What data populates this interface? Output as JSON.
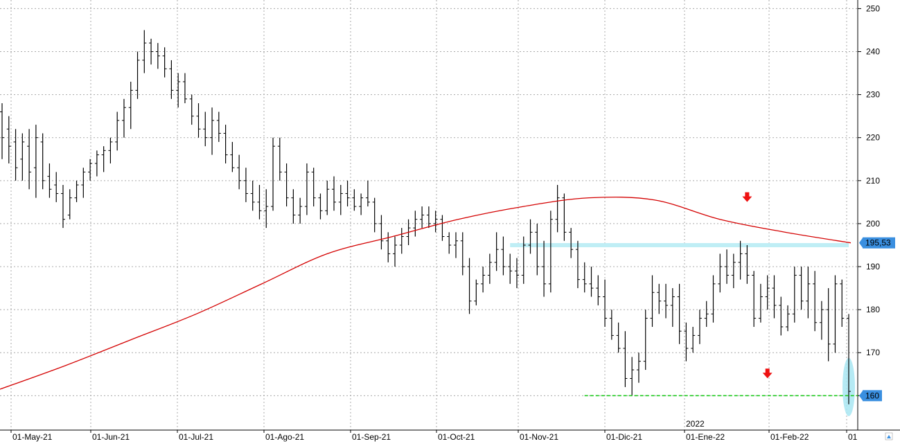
{
  "chart_data": {
    "type": "ohlc",
    "ylim": [
      152,
      252
    ],
    "y_ticks": [
      160,
      170,
      180,
      190,
      200,
      210,
      220,
      230,
      240,
      250
    ],
    "grid": true,
    "x_tick_labels": [
      "01-May-21",
      "01-Jun-21",
      "01-Jul-21",
      "01-Ago-21",
      "01-Sep-21",
      "01-Oct-21",
      "01-Nov-21",
      "01-Dic-21",
      "01-Ene-22",
      "01-Feb-22",
      "01"
    ],
    "year_marker": "2022",
    "series": [
      {
        "kind": "daily_bars",
        "bars": [
          [
            226,
            228,
            215,
            220
          ],
          [
            222,
            225,
            214,
            218
          ],
          [
            219,
            222,
            210,
            213
          ],
          [
            215,
            221,
            210,
            219
          ],
          [
            218,
            222,
            208,
            212
          ],
          [
            213,
            223,
            206,
            220
          ],
          [
            219,
            221,
            208,
            210
          ],
          [
            211,
            214,
            206,
            208
          ],
          [
            209,
            212,
            205,
            207
          ],
          [
            207,
            209,
            199,
            201
          ],
          [
            202,
            208,
            201,
            206
          ],
          [
            206,
            210,
            205,
            209
          ],
          [
            209,
            213,
            206,
            212
          ],
          [
            212,
            215,
            210,
            214
          ],
          [
            214,
            217,
            211,
            216
          ],
          [
            216,
            218,
            212,
            217
          ],
          [
            217,
            220,
            214,
            219
          ],
          [
            219,
            226,
            217,
            224
          ],
          [
            224,
            229,
            220,
            227
          ],
          [
            227,
            233,
            222,
            231
          ],
          [
            231,
            240,
            229,
            238
          ],
          [
            238,
            245,
            235,
            242
          ],
          [
            242,
            243,
            237,
            240
          ],
          [
            240,
            242,
            236,
            239
          ],
          [
            239,
            241,
            234,
            236
          ],
          [
            236,
            238,
            229,
            231
          ],
          [
            231,
            235,
            227,
            233
          ],
          [
            233,
            235,
            228,
            229
          ],
          [
            229,
            230,
            223,
            225
          ],
          [
            225,
            228,
            220,
            222
          ],
          [
            222,
            226,
            218,
            220
          ],
          [
            220,
            227,
            216,
            224
          ],
          [
            224,
            226,
            219,
            221
          ],
          [
            221,
            223,
            214,
            216
          ],
          [
            216,
            219,
            212,
            213
          ],
          [
            213,
            216,
            208,
            210
          ],
          [
            210,
            213,
            205,
            207
          ],
          [
            207,
            210,
            203,
            205
          ],
          [
            205,
            209,
            201,
            203
          ],
          [
            203,
            208,
            199,
            204
          ],
          [
            204,
            220,
            203,
            218
          ],
          [
            218,
            220,
            210,
            212
          ],
          [
            212,
            214,
            204,
            206
          ],
          [
            206,
            208,
            200,
            202
          ],
          [
            202,
            206,
            200,
            204
          ],
          [
            204,
            214,
            202,
            212
          ],
          [
            212,
            213,
            204,
            206
          ],
          [
            206,
            207,
            201,
            203
          ],
          [
            203,
            210,
            202,
            208
          ],
          [
            208,
            211,
            203,
            205
          ],
          [
            205,
            209,
            202,
            207
          ],
          [
            207,
            210,
            204,
            206
          ],
          [
            206,
            208,
            203,
            204
          ],
          [
            204,
            207,
            202,
            206
          ],
          [
            206,
            210,
            204,
            205
          ],
          [
            205,
            206,
            198,
            200
          ],
          [
            200,
            202,
            194,
            196
          ],
          [
            196,
            198,
            191,
            193
          ],
          [
            193,
            197,
            190,
            195
          ],
          [
            195,
            199,
            193,
            197
          ],
          [
            197,
            201,
            195,
            199
          ],
          [
            199,
            203,
            197,
            201
          ],
          [
            201,
            204,
            199,
            202
          ],
          [
            202,
            204,
            199,
            200
          ],
          [
            200,
            203,
            198,
            201
          ],
          [
            201,
            202,
            196,
            197
          ],
          [
            197,
            198,
            193,
            195
          ],
          [
            195,
            198,
            192,
            196
          ],
          [
            196,
            198,
            188,
            190
          ],
          [
            190,
            192,
            179,
            182
          ],
          [
            182,
            187,
            181,
            186
          ],
          [
            186,
            190,
            184,
            188
          ],
          [
            188,
            193,
            186,
            191
          ],
          [
            191,
            198,
            189,
            194
          ],
          [
            194,
            197,
            188,
            190
          ],
          [
            190,
            193,
            186,
            189
          ],
          [
            189,
            192,
            185,
            188
          ],
          [
            188,
            197,
            186,
            195
          ],
          [
            195,
            201,
            193,
            198
          ],
          [
            198,
            200,
            188,
            190
          ],
          [
            190,
            196,
            183,
            186
          ],
          [
            186,
            203,
            184,
            201
          ],
          [
            201,
            209,
            198,
            206
          ],
          [
            206,
            207,
            196,
            198
          ],
          [
            198,
            199,
            192,
            194
          ],
          [
            194,
            196,
            185,
            187
          ],
          [
            187,
            191,
            184,
            186
          ],
          [
            186,
            190,
            183,
            185
          ],
          [
            185,
            188,
            181,
            183
          ],
          [
            183,
            187,
            176,
            178
          ],
          [
            178,
            180,
            173,
            174
          ],
          [
            174,
            177,
            170,
            171
          ],
          [
            171,
            175,
            162,
            164
          ],
          [
            164,
            169,
            160,
            166
          ],
          [
            166,
            170,
            163,
            168
          ],
          [
            168,
            180,
            166,
            178
          ],
          [
            178,
            188,
            176,
            184
          ],
          [
            184,
            186,
            179,
            182
          ],
          [
            182,
            186,
            178,
            181
          ],
          [
            181,
            185,
            176,
            183
          ],
          [
            183,
            186,
            172,
            175
          ],
          [
            175,
            177,
            168,
            171
          ],
          [
            171,
            176,
            170,
            174
          ],
          [
            174,
            180,
            172,
            178
          ],
          [
            178,
            182,
            176,
            179
          ],
          [
            179,
            188,
            177,
            186
          ],
          [
            186,
            193,
            184,
            190
          ],
          [
            190,
            194,
            186,
            188
          ],
          [
            188,
            193,
            185,
            191
          ],
          [
            191,
            196,
            187,
            193
          ],
          [
            193,
            195,
            186,
            188
          ],
          [
            188,
            189,
            176,
            178
          ],
          [
            178,
            186,
            177,
            183
          ],
          [
            183,
            188,
            180,
            185
          ],
          [
            185,
            188,
            178,
            181
          ],
          [
            181,
            183,
            174,
            176
          ],
          [
            176,
            181,
            175,
            179
          ],
          [
            179,
            190,
            177,
            188
          ],
          [
            188,
            190,
            180,
            182
          ],
          [
            182,
            190,
            178,
            186
          ],
          [
            186,
            189,
            175,
            177
          ],
          [
            177,
            182,
            173,
            180
          ],
          [
            180,
            185,
            168,
            172
          ],
          [
            172,
            188,
            170,
            186
          ],
          [
            186,
            187,
            176,
            178
          ],
          [
            178,
            179,
            158,
            161
          ]
        ]
      },
      {
        "kind": "line",
        "color": "#d40000",
        "values": [
          161.5,
          167,
          173,
          179,
          186,
          193,
          197,
          201,
          204,
          206,
          205.5,
          201,
          198,
          195.53
        ]
      },
      {
        "kind": "hline",
        "color": "#22cc22",
        "dashed": true,
        "value": 160,
        "from_bar": 86,
        "to_bar": 125
      },
      {
        "kind": "band",
        "color": "#bfeef5",
        "value": 195,
        "from_bar": 75,
        "to_bar": 125
      }
    ],
    "price_labels": [
      {
        "text": "195,53",
        "value": 195.53,
        "bg": "#3a8fe0",
        "fg": "#000000"
      },
      {
        "text": "160",
        "value": 160,
        "bg": "#3a8fe0",
        "fg": "#000000"
      }
    ],
    "arrows": [
      {
        "color": "#ee1111",
        "value": 206,
        "bar": 110
      },
      {
        "color": "#ee1111",
        "value": 165,
        "bar": 113
      }
    ],
    "highlight_ellipse": {
      "color": "#a8e6f2",
      "center": 162,
      "bar": 125
    }
  }
}
